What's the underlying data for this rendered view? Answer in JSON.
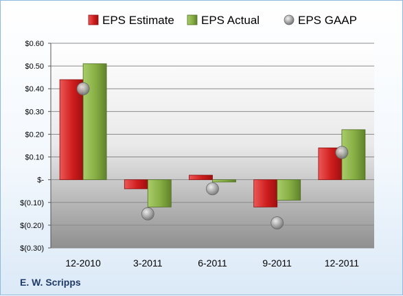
{
  "company": "E. W. Scripps",
  "chart_data": {
    "type": "bar",
    "categories": [
      "12-2010",
      "3-2011",
      "6-2011",
      "9-2011",
      "12-2011"
    ],
    "series": [
      {
        "name": "EPS Estimate",
        "kind": "bar",
        "color": "#d42a2a",
        "values": [
          0.44,
          -0.04,
          0.02,
          -0.12,
          0.14
        ]
      },
      {
        "name": "EPS Actual",
        "kind": "bar",
        "color": "#8db44a",
        "values": [
          0.51,
          -0.12,
          -0.01,
          -0.09,
          0.22
        ]
      },
      {
        "name": "EPS GAAP",
        "kind": "marker",
        "color": "#a9a9a9",
        "values": [
          0.4,
          -0.15,
          -0.04,
          -0.19,
          0.12
        ]
      }
    ],
    "yticks": [
      "$0.60",
      "$0.50",
      "$0.40",
      "$0.30",
      "$0.20",
      "$0.10",
      "$-",
      "$(0.10)",
      "$(0.20)",
      "$(0.30)"
    ],
    "ylim": [
      -0.3,
      0.6
    ],
    "grid": true,
    "legend": "top"
  }
}
